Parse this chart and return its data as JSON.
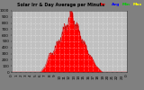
{
  "title": "Solar Irr & Day Average per Minute",
  "bg_color": "#808080",
  "plot_bg_color": "#c0c0c0",
  "area_color": "#ff0000",
  "line_color": "#cc0000",
  "grid_color": "#ffffff",
  "text_color": "#000000",
  "legend_colors": [
    "#ff0000",
    "#0000ff",
    "#00cc00",
    "#ffff00"
  ],
  "legend_labels": [
    "Irr",
    "Avg",
    "Min",
    "Max"
  ],
  "ylim": [
    0,
    1000
  ],
  "xlim": [
    0,
    1440
  ],
  "xlabel_ticks": [
    0,
    60,
    120,
    180,
    240,
    300,
    360,
    420,
    480,
    540,
    600,
    660,
    720,
    780,
    840,
    900,
    960,
    1020,
    1080,
    1140,
    1200,
    1260,
    1320,
    1380,
    1440
  ],
  "xlabel_labels": [
    "0",
    "1",
    "2",
    "3",
    "4",
    "5",
    "6",
    "7",
    "8",
    "9",
    "10",
    "11",
    "12",
    "13",
    "14",
    "15",
    "16",
    "17",
    "18",
    "19",
    "20",
    "21",
    "22",
    "23",
    "0"
  ],
  "ytick_vals": [
    0,
    100,
    200,
    300,
    400,
    500,
    600,
    700,
    800,
    900,
    1000
  ],
  "sunrise": 360,
  "sunset": 1140,
  "solar_noon": 750,
  "peak_irr": 950,
  "figsize": [
    1.6,
    1.0
  ],
  "dpi": 100
}
